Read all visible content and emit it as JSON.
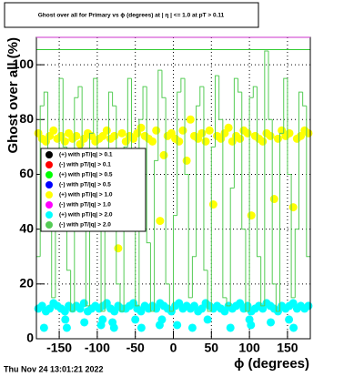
{
  "chart_data": {
    "type": "scatter",
    "title": "Ghost over all for Primary vs ϕ (degrees) at | η | <= 1.0 at pT > 0.11",
    "x_label": "ϕ (degrees)",
    "y_label": "Ghost over all (%)",
    "footer": "Thu Nov 24 13:01:21 2022",
    "xlim": [
      -180,
      180
    ],
    "ylim": [
      0,
      110
    ],
    "xticks": [
      -150,
      -100,
      -50,
      0,
      50,
      100,
      150
    ],
    "yticks": [
      0,
      20,
      40,
      60,
      80,
      100
    ],
    "grid": true,
    "legend": "left",
    "reference_line": {
      "value": 105.5,
      "color": "#33cc33"
    },
    "series": [
      {
        "name": "(+) with pT/|q| > 0.1",
        "color": "#000000"
      },
      {
        "name": "(-) with pT/|q| > 0.1",
        "color": "#ff0000"
      },
      {
        "name": "(+) with pT/|q| > 0.5",
        "color": "#00ff00"
      },
      {
        "name": "(-) with pT/|q| > 0.5",
        "color": "#0000ff"
      },
      {
        "name": "(+) with pT/|q| > 1.0",
        "color": "#ffff00",
        "x": [
          -177.5,
          -172.5,
          -167.5,
          -162.5,
          -157.5,
          -152.5,
          -147.5,
          -142.5,
          -137.5,
          -132.5,
          -127.5,
          -122.5,
          -117.5,
          -112.5,
          -107.5,
          -102.5,
          -97.5,
          -92.5,
          -87.5,
          -82.5,
          -77.5,
          -72.5,
          -67.5,
          -62.5,
          -57.5,
          -52.5,
          -47.5,
          -42.5,
          -37.5,
          -32.5,
          -27.5,
          -22.5,
          -17.5,
          -12.5,
          -7.5,
          -2.5,
          2.5,
          7.5,
          12.5,
          17.5,
          22.5,
          27.5,
          32.5,
          37.5,
          42.5,
          47.5,
          52.5,
          57.5,
          62.5,
          67.5,
          72.5,
          77.5,
          82.5,
          87.5,
          92.5,
          97.5,
          102.5,
          107.5,
          112.5,
          117.5,
          122.5,
          127.5,
          132.5,
          137.5,
          142.5,
          147.5,
          152.5,
          157.5,
          162.5,
          167.5,
          172.5,
          177.5
        ],
        "values": [
          75,
          73,
          72,
          74,
          76,
          73,
          74,
          72,
          75,
          73,
          74,
          71,
          73,
          75,
          74,
          72,
          73,
          74,
          76,
          73,
          74,
          33,
          75,
          72,
          74,
          73,
          75,
          77,
          74,
          73,
          72,
          76,
          43,
          67,
          74,
          75,
          73,
          72,
          76,
          65,
          80,
          74,
          73,
          75,
          72,
          76,
          49,
          74,
          73,
          75,
          77,
          72,
          74,
          73,
          76,
          75,
          45,
          74,
          73,
          72,
          75,
          74,
          51,
          73,
          76,
          74,
          75,
          48,
          73,
          74,
          76,
          75
        ]
      },
      {
        "name": "(-) with pT/|q| > 1.0",
        "color": "#ff00ff"
      },
      {
        "name": "(+) with pT/|q| > 2.0",
        "color": "#00ffff",
        "x": [
          -177.5,
          -172.5,
          -167.5,
          -162.5,
          -157.5,
          -152.5,
          -147.5,
          -142.5,
          -137.5,
          -132.5,
          -127.5,
          -122.5,
          -117.5,
          -112.5,
          -107.5,
          -102.5,
          -97.5,
          -92.5,
          -87.5,
          -82.5,
          -77.5,
          -72.5,
          -67.5,
          -62.5,
          -57.5,
          -52.5,
          -47.5,
          -42.5,
          -37.5,
          -32.5,
          -27.5,
          -22.5,
          -17.5,
          -12.5,
          -7.5,
          -2.5,
          2.5,
          7.5,
          12.5,
          17.5,
          22.5,
          27.5,
          32.5,
          37.5,
          42.5,
          47.5,
          52.5,
          57.5,
          62.5,
          67.5,
          72.5,
          77.5,
          82.5,
          87.5,
          92.5,
          97.5,
          102.5,
          107.5,
          112.5,
          117.5,
          122.5,
          127.5,
          132.5,
          137.5,
          142.5,
          147.5,
          152.5,
          157.5,
          162.5,
          167.5,
          172.5,
          177.5,
          -170,
          -142,
          -140,
          -117,
          -95,
          -93,
          -80,
          -78,
          -50,
          -42,
          -18,
          -15,
          5,
          25,
          45,
          75,
          100,
          102,
          128,
          152,
          158
        ],
        "values": [
          11,
          12,
          10,
          11,
          13,
          12,
          11,
          10,
          12,
          11,
          12,
          11,
          13,
          10,
          11,
          12,
          11,
          12,
          13,
          11,
          10,
          12,
          11,
          11,
          12,
          13,
          11,
          10,
          12,
          11,
          12,
          11,
          13,
          12,
          11,
          10,
          12,
          13,
          11,
          12,
          11,
          12,
          10,
          11,
          13,
          12,
          11,
          12,
          11,
          10,
          12,
          11,
          12,
          13,
          11,
          12,
          10,
          11,
          12,
          11,
          13,
          12,
          11,
          10,
          12,
          11,
          12,
          13,
          11,
          12,
          11,
          12,
          4,
          7,
          4,
          6,
          5,
          7,
          6,
          4,
          7,
          4,
          5,
          7,
          5,
          4,
          7,
          4,
          7,
          5,
          6,
          7,
          4
        ]
      },
      {
        "name": "(-) with pT/|q| > 2.0",
        "color": "#55cc55",
        "bins": [
          -180,
          -175,
          -170,
          -165,
          -160,
          -155,
          -150,
          -145,
          -140,
          -135,
          -130,
          -125,
          -120,
          -115,
          -110,
          -105,
          -100,
          -95,
          -90,
          -85,
          -80,
          -75,
          -70,
          -65,
          -60,
          -55,
          -50,
          -45,
          -40,
          -35,
          -30,
          -25,
          -20,
          -15,
          -10,
          -5,
          0,
          5,
          10,
          15,
          20,
          25,
          30,
          35,
          40,
          45,
          50,
          55,
          60,
          65,
          70,
          75,
          80,
          85,
          90,
          95,
          100,
          105,
          110,
          115,
          120,
          125,
          130,
          135,
          140,
          145,
          150,
          155,
          160,
          165,
          170,
          175,
          180
        ],
        "values": [
          30,
          85,
          90,
          45,
          15,
          60,
          95,
          70,
          25,
          10,
          88,
          92,
          50,
          12,
          75,
          95,
          40,
          10,
          60,
          90,
          85,
          20,
          10,
          70,
          95,
          55,
          12,
          80,
          92,
          35,
          10,
          65,
          98,
          88,
          20,
          10,
          45,
          90,
          95,
          60,
          15,
          30,
          85,
          92,
          25,
          10,
          70,
          96,
          80,
          15,
          12,
          55,
          95,
          90,
          40,
          10,
          88,
          92,
          30,
          12,
          105,
          80,
          20,
          10,
          75,
          95,
          60,
          15,
          40,
          90,
          85,
          30
        ]
      }
    ]
  }
}
